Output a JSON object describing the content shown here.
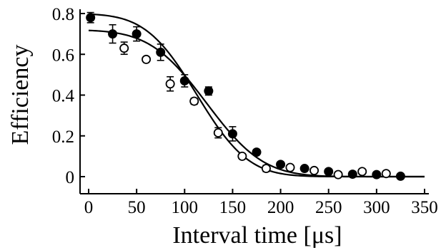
{
  "chart_data": {
    "type": "scatter",
    "title": "",
    "xlabel": "Interval time [μs]",
    "ylabel": "Efficiency",
    "xlim": [
      0,
      350
    ],
    "ylim": [
      0,
      0.8
    ],
    "xticks": [
      "0",
      "50",
      "100",
      "150",
      "200",
      "250",
      "300",
      "350"
    ],
    "yticks": [
      "0",
      "0.2",
      "0.4",
      "0.6",
      "0.8"
    ],
    "grid": false,
    "legend": "none",
    "series": [
      {
        "marker": "filled-circle",
        "color": "#000000",
        "points": [
          {
            "x": 2,
            "y": 0.78,
            "err": 0.025
          },
          {
            "x": 25,
            "y": 0.7,
            "err": 0.045
          },
          {
            "x": 50,
            "y": 0.7,
            "err": 0.035
          },
          {
            "x": 75,
            "y": 0.61,
            "err": 0.04
          },
          {
            "x": 100,
            "y": 0.47,
            "err": 0.03
          },
          {
            "x": 125,
            "y": 0.42,
            "err": 0.02
          },
          {
            "x": 150,
            "y": 0.21,
            "err": 0.035
          },
          {
            "x": 175,
            "y": 0.12,
            "err": 0.01
          },
          {
            "x": 200,
            "y": 0.06,
            "err": 0.01
          },
          {
            "x": 225,
            "y": 0.04,
            "err": 0.01
          },
          {
            "x": 250,
            "y": 0.025,
            "err": 0.008
          },
          {
            "x": 275,
            "y": 0.012,
            "err": 0.006
          },
          {
            "x": 300,
            "y": 0.01,
            "err": 0.006
          },
          {
            "x": 325,
            "y": 0.002,
            "err": 0.004
          }
        ]
      },
      {
        "marker": "open-circle",
        "color": "#000000",
        "points": [
          {
            "x": 37,
            "y": 0.63,
            "err": 0.03
          },
          {
            "x": 60,
            "y": 0.575,
            "err": 0.01
          },
          {
            "x": 85,
            "y": 0.455,
            "err": 0.035
          },
          {
            "x": 110,
            "y": 0.37,
            "err": 0.015
          },
          {
            "x": 135,
            "y": 0.215,
            "err": 0.025
          },
          {
            "x": 160,
            "y": 0.1,
            "err": 0.012
          },
          {
            "x": 185,
            "y": 0.04,
            "err": 0.015
          },
          {
            "x": 210,
            "y": 0.045,
            "err": 0.01
          },
          {
            "x": 235,
            "y": 0.03,
            "err": 0.008
          },
          {
            "x": 260,
            "y": 0.01,
            "err": 0.01
          },
          {
            "x": 285,
            "y": 0.025,
            "err": 0.01
          },
          {
            "x": 310,
            "y": 0.015,
            "err": 0.01
          }
        ]
      }
    ],
    "fits": [
      {
        "amplitude": 0.8,
        "t0": 113,
        "width": 95
      },
      {
        "amplitude": 0.72,
        "t0": 123,
        "width": 105
      }
    ]
  }
}
